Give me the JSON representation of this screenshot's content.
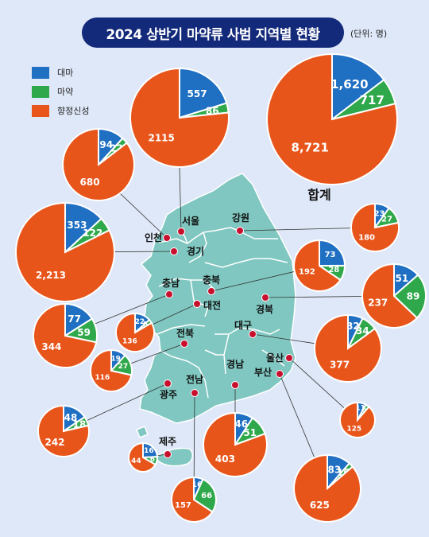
{
  "title": "2024 상반기 마약류 사범 지역별 현황",
  "unit": "(단위: 명)",
  "legend": [
    {
      "label": "대마",
      "color": "#1f6fc2"
    },
    {
      "label": "마약",
      "color": "#2ea84a"
    },
    {
      "label": "향정신성",
      "color": "#e8551b"
    }
  ],
  "colors": {
    "background": "#dfe8f8",
    "map_land": "#7fc7c0",
    "map_border": "#ffffff",
    "marker": "#c8102e",
    "title_bg": "#13297a"
  },
  "chart_data": {
    "type": "pie",
    "title": "2024 상반기 마약류 사범 지역별 현황",
    "categories": [
      "대마",
      "마약",
      "향정신성"
    ],
    "regions": [
      {
        "name": "합계",
        "values": [
          1620,
          717,
          8721
        ],
        "labels": [
          "1,620",
          "717",
          "8,721"
        ]
      },
      {
        "name": "서울",
        "values": [
          557,
          86,
          2115
        ],
        "labels": [
          "557",
          "86",
          "2115"
        ]
      },
      {
        "name": "인천",
        "values": [
          94,
          22,
          680
        ],
        "labels": [
          "94",
          "22",
          "680"
        ]
      },
      {
        "name": "경기",
        "values": [
          353,
          122,
          2213
        ],
        "labels": [
          "353",
          "122",
          "2,213"
        ]
      },
      {
        "name": "강원",
        "values": [
          23,
          27,
          180
        ],
        "labels": [
          "23",
          "27",
          "180"
        ]
      },
      {
        "name": "충북",
        "values": [
          73,
          28,
          192
        ],
        "labels": [
          "73",
          "28",
          "192"
        ]
      },
      {
        "name": "경북",
        "values": [
          51,
          89,
          237
        ],
        "labels": [
          "51",
          "89",
          "237"
        ]
      },
      {
        "name": "충남",
        "values": [
          77,
          59,
          344
        ],
        "labels": [
          "77",
          "59",
          "344"
        ]
      },
      {
        "name": "대전",
        "values": [
          22,
          5,
          136
        ],
        "labels": [
          "22",
          "5",
          "136"
        ]
      },
      {
        "name": "대구",
        "values": [
          32,
          34,
          377
        ],
        "labels": [
          "32",
          "34",
          "377"
        ]
      },
      {
        "name": "전북",
        "values": [
          19,
          27,
          116
        ],
        "labels": [
          "19",
          "27",
          "116"
        ]
      },
      {
        "name": "울산",
        "values": [
          11,
          5,
          125
        ],
        "labels": [
          "11",
          "5",
          "125"
        ]
      },
      {
        "name": "광주",
        "values": [
          48,
          18,
          242
        ],
        "labels": [
          "48",
          "18",
          "242"
        ]
      },
      {
        "name": "경남",
        "values": [
          46,
          51,
          403
        ],
        "labels": [
          "46",
          "51",
          "403"
        ]
      },
      {
        "name": "부산",
        "values": [
          83,
          16,
          625
        ],
        "labels": [
          "83",
          "16",
          "625"
        ]
      },
      {
        "name": "제주",
        "values": [
          16,
          6,
          44
        ],
        "labels": [
          "16",
          "6",
          "44"
        ]
      },
      {
        "name": "전남",
        "values": [
          16,
          66,
          157
        ],
        "labels": [
          "16",
          "66",
          "157"
        ]
      }
    ]
  }
}
